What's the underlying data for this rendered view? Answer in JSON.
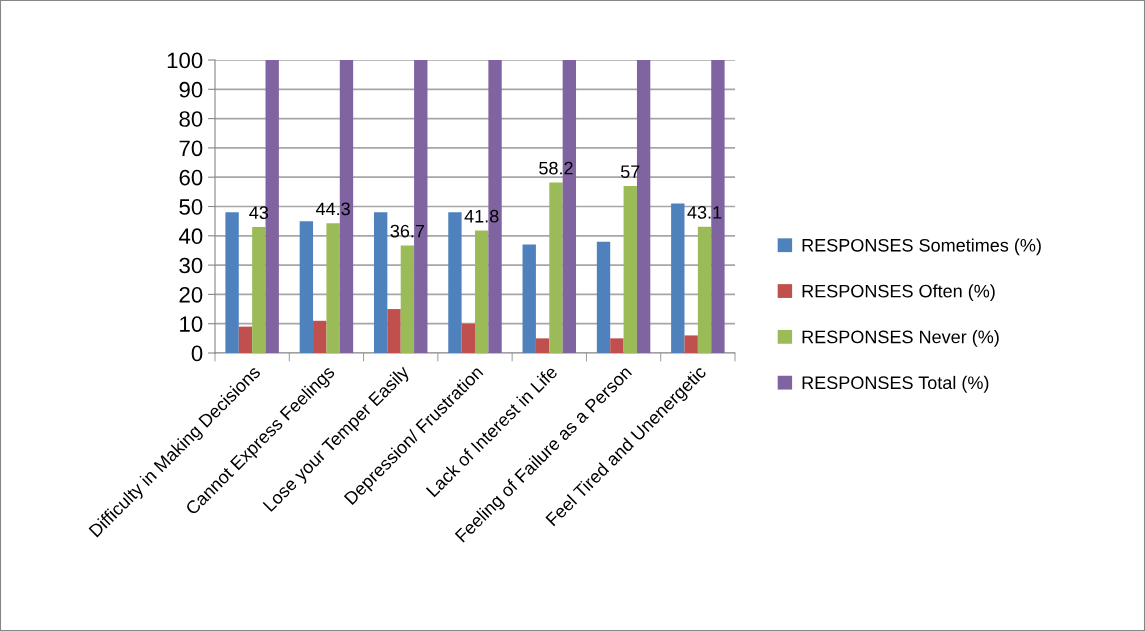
{
  "chart_data": {
    "type": "bar",
    "categories": [
      "Difficulty in Making Decisions",
      "Cannot Express Feelings",
      "Lose your Temper Easily",
      "Depression/ Frustration",
      "Lack of Interest in Life",
      "Feeling of Failure as a Person",
      "Feel Tired and Unenergetic"
    ],
    "series": [
      {
        "name": "RESPONSES Sometimes (%)",
        "color": "#4f81bd",
        "values": [
          48,
          45,
          48,
          48,
          37,
          38,
          51
        ]
      },
      {
        "name": "RESPONSES Often (%)",
        "color": "#c0504d",
        "values": [
          9,
          11,
          15,
          10,
          5,
          5,
          6
        ]
      },
      {
        "name": "RESPONSES Never (%)",
        "color": "#9bbb59",
        "values": [
          43,
          44.3,
          36.7,
          41.8,
          58.2,
          57,
          43.1
        ],
        "value_labels": [
          "43",
          "44.3",
          "36.7",
          "41.8",
          "58.2",
          "57",
          "43.1"
        ]
      },
      {
        "name": "RESPONSES Total (%)",
        "color": "#8064a2",
        "values": [
          100,
          100,
          100,
          100,
          100,
          100,
          100
        ]
      }
    ],
    "ylim": [
      0,
      100
    ],
    "yticks": [
      0,
      10,
      20,
      30,
      40,
      50,
      60,
      70,
      80,
      90,
      100
    ],
    "grid": "y",
    "legend": "right"
  }
}
